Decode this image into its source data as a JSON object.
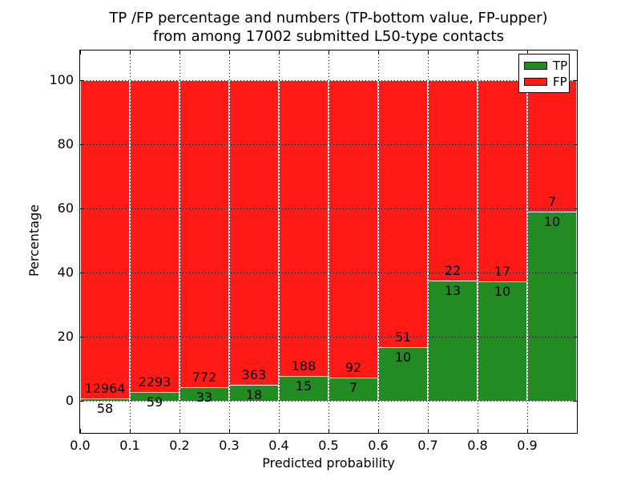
{
  "title": {
    "line1": "TP /FP percentage and numbers (TP-bottom value, FP-upper)",
    "line2": "from among 17002 submitted L50-type contacts"
  },
  "axes": {
    "xlabel": "Predicted probability",
    "ylabel": "Percentage",
    "xticks": [
      "0.0",
      "0.1",
      "0.2",
      "0.3",
      "0.4",
      "0.5",
      "0.6",
      "0.7",
      "0.8",
      "0.9"
    ],
    "yticks": [
      0,
      20,
      40,
      60,
      80,
      100
    ],
    "xlim": [
      0,
      1.0
    ],
    "ylim": [
      -10,
      110
    ],
    "grid": "dotted"
  },
  "legend": {
    "position": "upper-right",
    "items": [
      {
        "label": "TP",
        "color": "#228b22"
      },
      {
        "label": "FP",
        "color": "#ff1a15"
      }
    ]
  },
  "chart_data": {
    "type": "bar",
    "stacked": true,
    "normalized_to_percent": true,
    "title": "TP /FP percentage and numbers (TP-bottom value, FP-upper) from among 17002 submitted L50-type contacts",
    "xlabel": "Predicted probability",
    "ylabel": "Percentage",
    "total_contacts": 17002,
    "bin_edges": [
      0.0,
      0.1,
      0.2,
      0.3,
      0.4,
      0.5,
      0.6,
      0.7,
      0.8,
      0.9,
      1.0
    ],
    "categories": [
      "0.0-0.1",
      "0.1-0.2",
      "0.2-0.3",
      "0.3-0.4",
      "0.4-0.5",
      "0.5-0.6",
      "0.6-0.7",
      "0.7-0.8",
      "0.8-0.9",
      "0.9-1.0"
    ],
    "series": [
      {
        "name": "TP",
        "color": "#228b22",
        "counts": [
          58,
          59,
          33,
          18,
          15,
          7,
          10,
          13,
          10,
          10
        ]
      },
      {
        "name": "FP",
        "color": "#ff1a15",
        "counts": [
          12964,
          2293,
          772,
          363,
          188,
          92,
          51,
          22,
          17,
          7
        ]
      }
    ],
    "tp_percent": [
      0.45,
      2.51,
      4.1,
      4.72,
      7.39,
      7.07,
      16.39,
      37.14,
      37.04,
      58.82
    ],
    "ylim": [
      0,
      100
    ]
  }
}
